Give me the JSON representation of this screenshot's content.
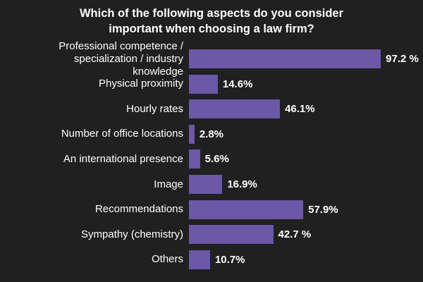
{
  "chart_data": {
    "type": "bar",
    "orientation": "horizontal",
    "title": "Which of the following aspects do you consider important when choosing a law firm?",
    "categories": [
      "Professional competence / specialization / industry knowledge",
      "Physical proximity",
      "Hourly rates",
      "Number of office locations",
      "An international presence",
      "Image",
      "Recommendations",
      "Sympathy (chemistry)",
      "Others"
    ],
    "values": [
      97.2,
      14.6,
      46.1,
      2.8,
      5.6,
      16.9,
      57.9,
      42.7,
      10.7
    ],
    "value_labels": [
      "97.2 %",
      "14.6%",
      "46.1%",
      "2.8%",
      "5.6%",
      "16.9%",
      "57.9%",
      "42.7 %",
      "10.7%"
    ],
    "color": "#6b58a6"
  }
}
